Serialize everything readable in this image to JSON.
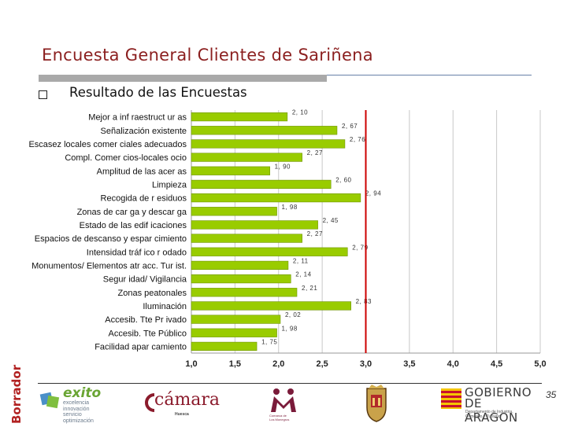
{
  "slide": {
    "title": "Encuesta General Clientes de Sariñena",
    "subtitle": "Resultado de las Encuestas",
    "page_number": "35",
    "watermark": "Borrador"
  },
  "logos": {
    "exito": {
      "word": "exito",
      "tagline": "excelencia\ninnovación\nservicio\noptimización"
    },
    "camara": {
      "word": "cámara",
      "sub": "Huesca"
    },
    "m_logo": {
      "sub": "Comarca de\nLos Monegros"
    },
    "aragon": {
      "line1": "GOBIERNO",
      "line2": "DE ARAGON",
      "line3": "Departamento de Industria,\nComercio y Turismo"
    }
  },
  "colors": {
    "bar": "#99cc00",
    "bar_edge": "#6f9400",
    "reference_line": "#cc0000",
    "grid": "#c8c8c8",
    "title": "#8b1f1f"
  },
  "chart_data": {
    "type": "bar",
    "orientation": "horizontal",
    "categories": [
      "Mejor a inf raestruct ur as",
      "Señalización existente",
      "Escasez locales comer ciales adecuados",
      "Compl. Comer cios-locales ocio",
      "Amplitud de las acer as",
      "Limpieza",
      "Recogida de r esiduos",
      "Zonas de car ga y descar ga",
      "Estado de las edif icaciones",
      "Espacios de descanso y espar cimiento",
      "Intensidad tráf ico r odado",
      "Monumentos/ Elementos atr acc. Tur ist.",
      "Segur idad/ Vigilancia",
      "Zonas peatonales",
      "Iluminación",
      "Accesib. Tte Pr ivado",
      "Accesib. Tte Público",
      "Facilidad apar camiento"
    ],
    "values": [
      2.1,
      2.67,
      2.76,
      2.27,
      1.9,
      2.6,
      2.94,
      1.98,
      2.45,
      2.27,
      2.79,
      2.11,
      2.14,
      2.21,
      2.83,
      2.02,
      1.98,
      1.75
    ],
    "value_labels": [
      "2, 10",
      "2, 67",
      "2, 76",
      "2, 27",
      "1, 90",
      "2, 60",
      "2, 94",
      "1, 98",
      "2, 45",
      "2, 27",
      "2, 79",
      "2, 11",
      "2, 14",
      "2, 21",
      "2, 83",
      "2, 02",
      "1, 98",
      "1, 75"
    ],
    "xlim": [
      1.0,
      5.0
    ],
    "xticks": [
      1.0,
      1.5,
      2.0,
      2.5,
      3.0,
      3.5,
      4.0,
      4.5,
      5.0
    ],
    "xtick_labels": [
      "1,0",
      "1,5",
      "2,0",
      "2,5",
      "3,0",
      "3,5",
      "4,0",
      "4,5",
      "5,0"
    ],
    "reference_line": 3.0,
    "grid": true,
    "legend": "none"
  }
}
